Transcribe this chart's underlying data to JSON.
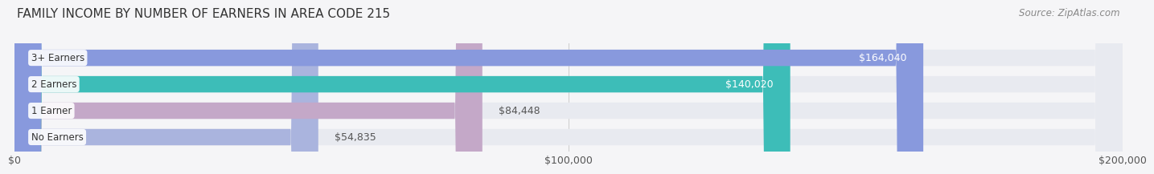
{
  "title": "FAMILY INCOME BY NUMBER OF EARNERS IN AREA CODE 215",
  "source": "Source: ZipAtlas.com",
  "categories": [
    "No Earners",
    "1 Earner",
    "2 Earners",
    "3+ Earners"
  ],
  "values": [
    54835,
    84448,
    140020,
    164040
  ],
  "labels": [
    "$54,835",
    "$84,448",
    "$140,020",
    "$164,040"
  ],
  "bar_colors": [
    "#aab4de",
    "#c4a8c8",
    "#3dbdb8",
    "#8899dd"
  ],
  "bar_bg_color": "#e8eaf0",
  "label_colors": [
    "#555555",
    "#555555",
    "#ffffff",
    "#ffffff"
  ],
  "xlim": [
    0,
    200000
  ],
  "xticks": [
    0,
    100000,
    200000
  ],
  "xtick_labels": [
    "$0",
    "$100,000",
    "$200,000"
  ],
  "title_fontsize": 11,
  "source_fontsize": 8.5,
  "tick_fontsize": 9,
  "bar_label_fontsize": 9,
  "category_fontsize": 8.5,
  "background_color": "#f5f5f7",
  "bar_height": 0.62
}
